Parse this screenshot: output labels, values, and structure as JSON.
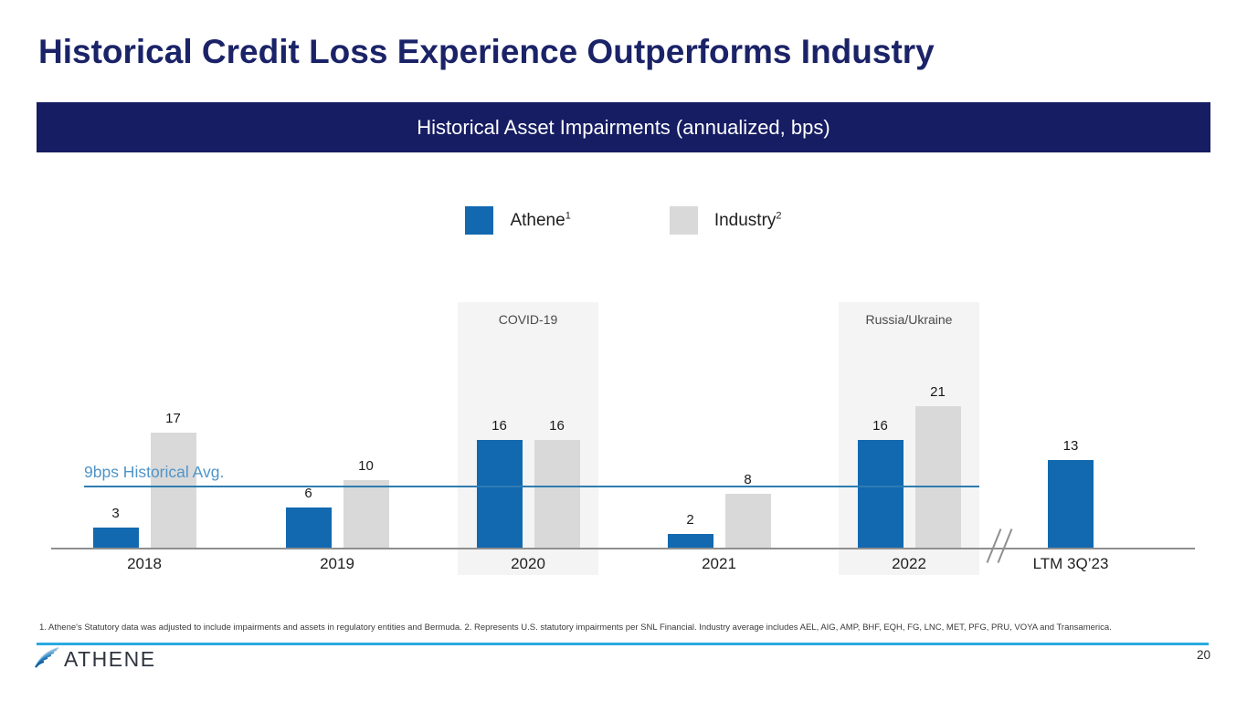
{
  "slide": {
    "title": "Historical Credit Loss Experience Outperforms Industry",
    "banner_title": "Historical Asset Impairments (annualized, bps)",
    "footnote": "1. Athene's Statutory data was adjusted to include impairments and assets in regulatory entities and Bermuda. 2. Represents U.S. statutory impairments per SNL Financial. Industry average includes AEL, AIG, AMP, BHF, EQH, FG, LNC, MET, PFG, PRU, VOYA and Transamerica.",
    "page_number": "20",
    "logo_text": "ATHENE"
  },
  "legend": {
    "items": [
      {
        "label": "Athene",
        "sup": "1",
        "color": "#1269b0"
      },
      {
        "label": "Industry",
        "sup": "2",
        "color": "#d9d9d9"
      }
    ]
  },
  "chart_data": {
    "type": "bar",
    "title": "Historical Asset Impairments (annualized, bps)",
    "categories": [
      "2018",
      "2019",
      "2020",
      "2021",
      "2022",
      "LTM 3Q’23"
    ],
    "series": [
      {
        "name": "Athene",
        "color": "#1269b0",
        "values": [
          3,
          6,
          16,
          2,
          16,
          13
        ]
      },
      {
        "name": "Industry",
        "color": "#d9d9d9",
        "values": [
          17,
          10,
          16,
          8,
          21,
          null
        ]
      }
    ],
    "reference_line": {
      "value": 9,
      "label": "9bps Historical Avg.",
      "color": "#2e7cb2"
    },
    "annotations": [
      {
        "label": "COVID-19",
        "category": "2020"
      },
      {
        "label": "Russia/Ukraine",
        "category": "2022"
      }
    ],
    "axis_break": {
      "after_category": "2022"
    },
    "value_labels": true,
    "ylim": [
      0,
      25
    ],
    "grid": false,
    "legend_position": "top"
  }
}
